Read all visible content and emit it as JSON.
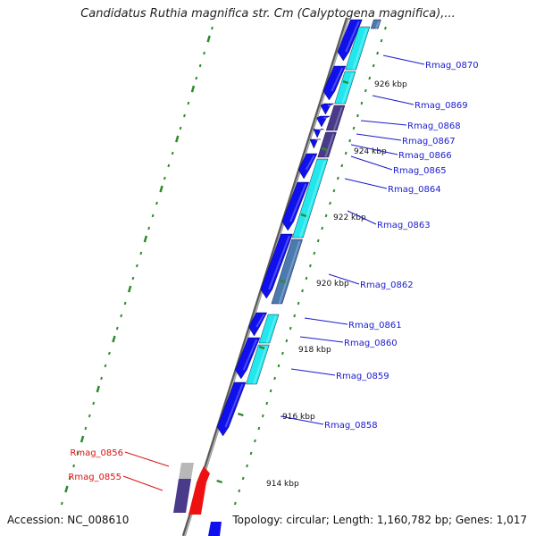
{
  "title": "Candidatus Ruthia magnifica str. Cm (Calyptogena magnifica),...",
  "footer": {
    "accession": "Accession: NC_008610",
    "summary": "Topology: circular; Length: 1,160,782 bp; Genes: 1,017"
  },
  "colors": {
    "backbone": "#8a8a8a",
    "tick": "#2e8b2e",
    "gene_blue": "#1010ee",
    "gene_cyan": "#22e8ee",
    "gene_navy": "#4a3a8a",
    "gene_grey": "#b8b8b8",
    "gene_steel": "#4a7ab0",
    "gene_red": "#ee1111",
    "label_blue": "#1a1acc",
    "label_red": "#dd1111"
  },
  "kbp_ticks": [
    {
      "label": "926 kbp"
    },
    {
      "label": "924 kbp"
    },
    {
      "label": "922 kbp"
    },
    {
      "label": "920 kbp"
    },
    {
      "label": "918 kbp"
    },
    {
      "label": "916 kbp"
    },
    {
      "label": "914 kbp"
    }
  ],
  "gene_labels": [
    {
      "name": "Rmag_0870",
      "color": "blue"
    },
    {
      "name": "Rmag_0869",
      "color": "blue"
    },
    {
      "name": "Rmag_0868",
      "color": "blue"
    },
    {
      "name": "Rmag_0867",
      "color": "blue"
    },
    {
      "name": "Rmag_0866",
      "color": "blue"
    },
    {
      "name": "Rmag_0865",
      "color": "blue"
    },
    {
      "name": "Rmag_0864",
      "color": "blue"
    },
    {
      "name": "Rmag_0863",
      "color": "blue"
    },
    {
      "name": "Rmag_0862",
      "color": "blue"
    },
    {
      "name": "Rmag_0861",
      "color": "blue"
    },
    {
      "name": "Rmag_0860",
      "color": "blue"
    },
    {
      "name": "Rmag_0859",
      "color": "blue"
    },
    {
      "name": "Rmag_0858",
      "color": "blue"
    },
    {
      "name": "Rmag_0856",
      "color": "red"
    },
    {
      "name": "Rmag_0855",
      "color": "red"
    }
  ]
}
